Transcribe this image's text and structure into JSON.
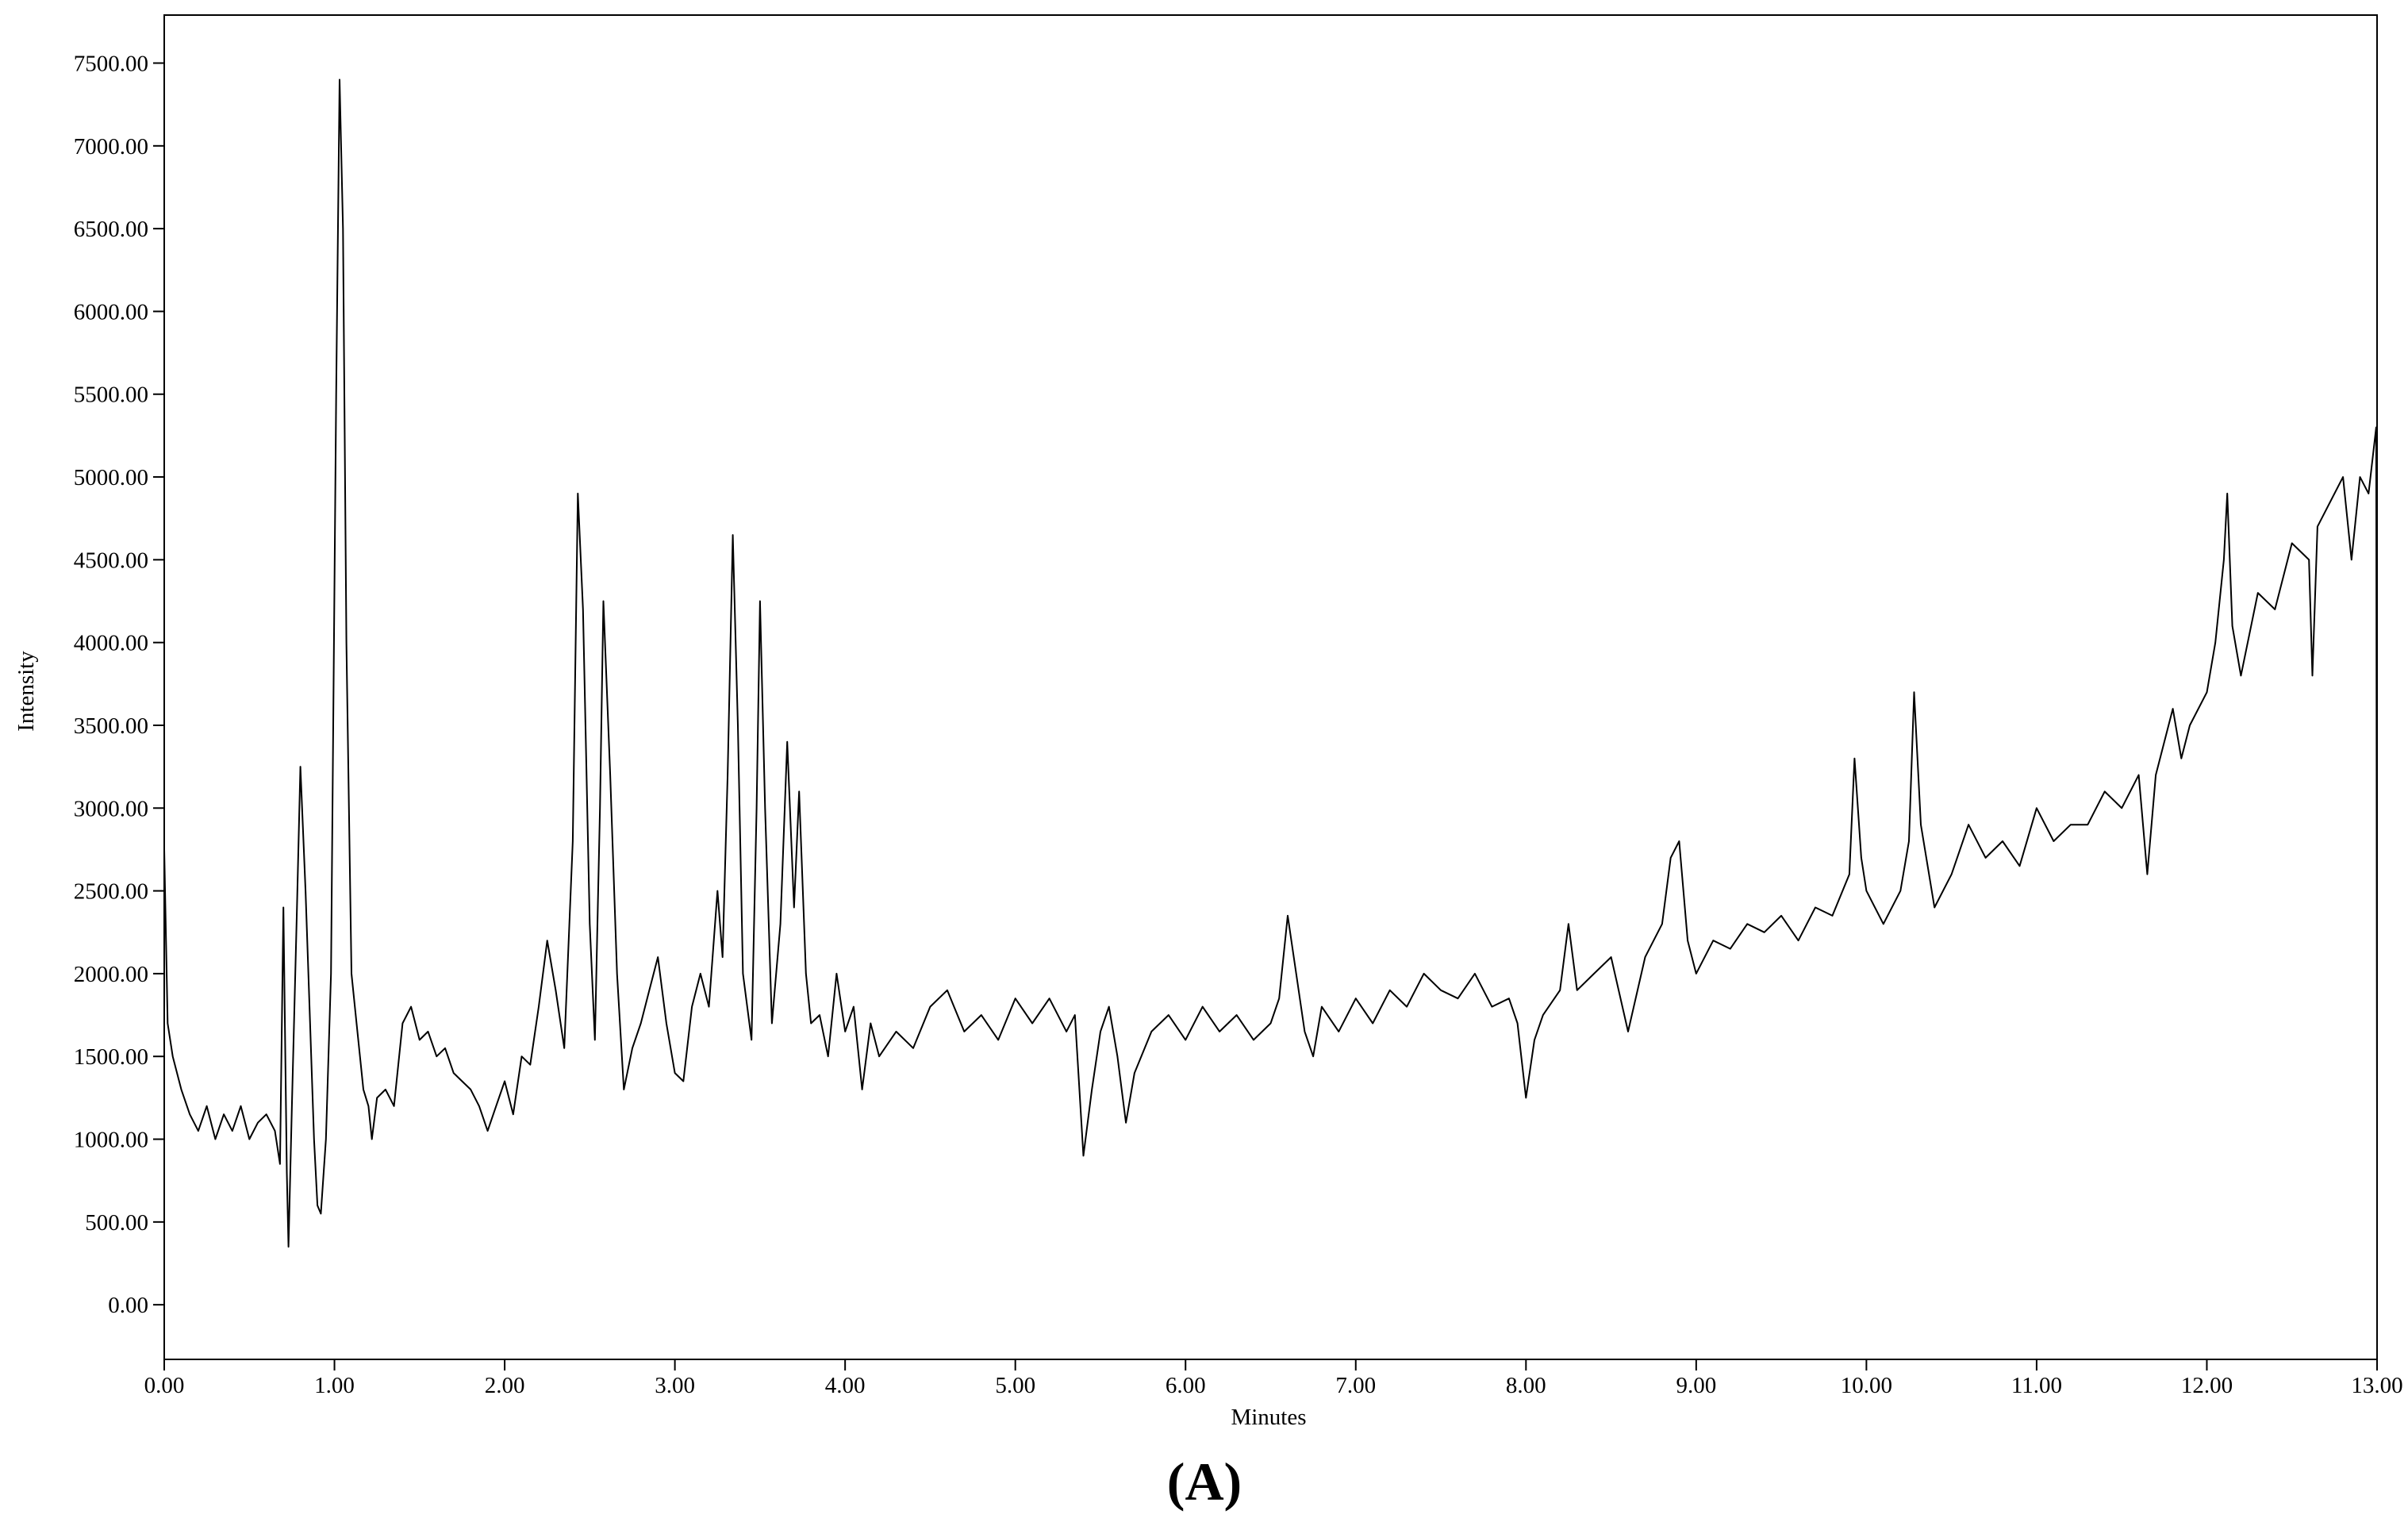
{
  "chart_data": {
    "type": "line",
    "x_label": "Minutes",
    "y_label": "Intensity",
    "caption": "(A)",
    "color": "#000000",
    "xlim": [
      0,
      13
    ],
    "ylim": [
      -330,
      7790
    ],
    "xticks": [
      {
        "value": 0,
        "label": "0.00"
      },
      {
        "value": 1,
        "label": "1.00"
      },
      {
        "value": 2,
        "label": "2.00"
      },
      {
        "value": 3,
        "label": "3.00"
      },
      {
        "value": 4,
        "label": "4.00"
      },
      {
        "value": 5,
        "label": "5.00"
      },
      {
        "value": 6,
        "label": "6.00"
      },
      {
        "value": 7,
        "label": "7.00"
      },
      {
        "value": 8,
        "label": "8.00"
      },
      {
        "value": 9,
        "label": "9.00"
      },
      {
        "value": 10,
        "label": "10.00"
      },
      {
        "value": 11,
        "label": "11.00"
      },
      {
        "value": 12,
        "label": "12.00"
      },
      {
        "value": 13,
        "label": "13.00"
      }
    ],
    "yticks": [
      {
        "value": 0,
        "label": "0.00"
      },
      {
        "value": 500,
        "label": "500.00"
      },
      {
        "value": 1000,
        "label": "1000.00"
      },
      {
        "value": 1500,
        "label": "1500.00"
      },
      {
        "value": 2000,
        "label": "2000.00"
      },
      {
        "value": 2500,
        "label": "2500.00"
      },
      {
        "value": 3000,
        "label": "3000.00"
      },
      {
        "value": 3500,
        "label": "3500.00"
      },
      {
        "value": 4000,
        "label": "4000.00"
      },
      {
        "value": 4500,
        "label": "4500.00"
      },
      {
        "value": 5000,
        "label": "5000.00"
      },
      {
        "value": 5500,
        "label": "5500.00"
      },
      {
        "value": 6000,
        "label": "6000.00"
      },
      {
        "value": 6500,
        "label": "6500.00"
      },
      {
        "value": 7000,
        "label": "7000.00"
      },
      {
        "value": 7500,
        "label": "7500.00"
      }
    ],
    "x": [
      0,
      0.02,
      0.05,
      0.1,
      0.15,
      0.2,
      0.25,
      0.3,
      0.35,
      0.4,
      0.45,
      0.5,
      0.55,
      0.6,
      0.65,
      0.68,
      0.7,
      0.72,
      0.73,
      0.75,
      0.78,
      0.8,
      0.83,
      0.85,
      0.88,
      0.9,
      0.92,
      0.95,
      0.98,
      1.01,
      1.03,
      1.05,
      1.07,
      1.1,
      1.13,
      1.17,
      1.2,
      1.22,
      1.25,
      1.3,
      1.35,
      1.4,
      1.45,
      1.5,
      1.55,
      1.6,
      1.65,
      1.7,
      1.75,
      1.8,
      1.85,
      1.9,
      1.95,
      2.0,
      2.05,
      2.1,
      2.15,
      2.2,
      2.25,
      2.3,
      2.35,
      2.4,
      2.43,
      2.46,
      2.5,
      2.53,
      2.56,
      2.58,
      2.62,
      2.66,
      2.7,
      2.75,
      2.8,
      2.85,
      2.9,
      2.95,
      3.0,
      3.05,
      3.1,
      3.15,
      3.2,
      3.25,
      3.28,
      3.31,
      3.34,
      3.37,
      3.4,
      3.45,
      3.48,
      3.5,
      3.53,
      3.57,
      3.62,
      3.66,
      3.7,
      3.73,
      3.77,
      3.8,
      3.85,
      3.9,
      3.95,
      4.0,
      4.05,
      4.1,
      4.15,
      4.2,
      4.3,
      4.4,
      4.5,
      4.6,
      4.7,
      4.8,
      4.9,
      5.0,
      5.1,
      5.2,
      5.3,
      5.35,
      5.4,
      5.45,
      5.5,
      5.55,
      5.6,
      5.65,
      5.7,
      5.8,
      5.9,
      6.0,
      6.1,
      6.2,
      6.3,
      6.4,
      6.5,
      6.55,
      6.6,
      6.65,
      6.7,
      6.75,
      6.8,
      6.9,
      7.0,
      7.1,
      7.2,
      7.3,
      7.4,
      7.5,
      7.6,
      7.7,
      7.8,
      7.9,
      7.95,
      8.0,
      8.05,
      8.1,
      8.2,
      8.25,
      8.3,
      8.4,
      8.5,
      8.6,
      8.7,
      8.8,
      8.85,
      8.9,
      8.95,
      9.0,
      9.1,
      9.2,
      9.3,
      9.4,
      9.5,
      9.6,
      9.7,
      9.8,
      9.9,
      9.93,
      9.97,
      10.0,
      10.1,
      10.2,
      10.25,
      10.28,
      10.32,
      10.4,
      10.5,
      10.6,
      10.7,
      10.8,
      10.9,
      11.0,
      11.1,
      11.2,
      11.3,
      11.4,
      11.5,
      11.6,
      11.65,
      11.7,
      11.8,
      11.85,
      11.9,
      12.0,
      12.05,
      12.1,
      12.12,
      12.15,
      12.2,
      12.3,
      12.4,
      12.5,
      12.6,
      12.62,
      12.65,
      12.7,
      12.8,
      12.85,
      12.9,
      12.95,
      12.995,
      13.0
    ],
    "values": [
      2750,
      1700,
      1500,
      1300,
      1150,
      1050,
      1200,
      1000,
      1150,
      1050,
      1200,
      1000,
      1100,
      1150,
      1050,
      850,
      2400,
      800,
      350,
      1200,
      2400,
      3250,
      2500,
      1900,
      1000,
      600,
      550,
      1000,
      2000,
      5500,
      7400,
      6500,
      4000,
      2000,
      1700,
      1300,
      1200,
      1000,
      1250,
      1300,
      1200,
      1700,
      1800,
      1600,
      1650,
      1500,
      1550,
      1400,
      1350,
      1300,
      1200,
      1050,
      1200,
      1350,
      1150,
      1500,
      1450,
      1800,
      2200,
      1900,
      1550,
      2800,
      4900,
      4200,
      2300,
      1600,
      3000,
      4250,
      3200,
      2000,
      1300,
      1550,
      1700,
      1900,
      2100,
      1700,
      1400,
      1350,
      1800,
      2000,
      1800,
      2500,
      2100,
      3200,
      4650,
      3500,
      2000,
      1600,
      3000,
      4250,
      3000,
      1700,
      2300,
      3400,
      2400,
      3100,
      2000,
      1700,
      1750,
      1500,
      2000,
      1650,
      1800,
      1300,
      1700,
      1500,
      1650,
      1550,
      1800,
      1900,
      1650,
      1750,
      1600,
      1850,
      1700,
      1850,
      1650,
      1750,
      900,
      1300,
      1650,
      1800,
      1500,
      1100,
      1400,
      1650,
      1750,
      1600,
      1800,
      1650,
      1750,
      1600,
      1700,
      1850,
      2350,
      2000,
      1650,
      1500,
      1800,
      1650,
      1850,
      1700,
      1900,
      1800,
      2000,
      1900,
      1850,
      2000,
      1800,
      1850,
      1700,
      1250,
      1600,
      1750,
      1900,
      2300,
      1900,
      2000,
      2100,
      1650,
      2100,
      2300,
      2700,
      2800,
      2200,
      2000,
      2200,
      2150,
      2300,
      2250,
      2350,
      2200,
      2400,
      2350,
      2600,
      3300,
      2700,
      2500,
      2300,
      2500,
      2800,
      3700,
      2900,
      2400,
      2600,
      2900,
      2700,
      2800,
      2650,
      3000,
      2800,
      2900,
      2900,
      3100,
      3000,
      3200,
      2600,
      3200,
      3600,
      3300,
      3500,
      3700,
      4000,
      4500,
      4900,
      4100,
      3800,
      4300,
      4200,
      4600,
      4500,
      3800,
      4700,
      4800,
      5000,
      4500,
      5000,
      4900,
      5300,
      850
    ]
  }
}
